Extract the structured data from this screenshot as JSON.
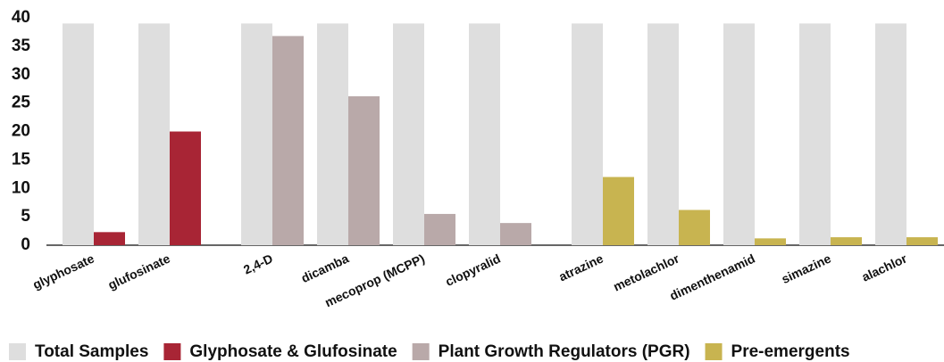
{
  "chart_data": {
    "type": "bar",
    "categories": [
      "glyphosate",
      "glufosinate",
      "2,4-D",
      "dicamba",
      "mecoprop (MCPP)",
      "clopyralid",
      "atrazine",
      "metolachlor",
      "dimenthenamid",
      "simazine",
      "alachlor"
    ],
    "series": [
      {
        "name": "Total Samples",
        "color": "#dedede",
        "values": [
          39,
          39,
          39,
          39,
          39,
          39,
          39,
          39,
          39,
          39,
          39
        ]
      },
      {
        "name": "Glyphosate & Glufosinate",
        "color": "#a82535",
        "values": [
          2.3,
          20,
          null,
          null,
          null,
          null,
          null,
          null,
          null,
          null,
          null
        ]
      },
      {
        "name": "Plant Growth Regulators (PGR)",
        "color": "#b9a9a9",
        "values": [
          null,
          null,
          36.8,
          26.2,
          5.5,
          3.9,
          null,
          null,
          null,
          null,
          null
        ]
      },
      {
        "name": "Pre-emergents",
        "color": "#c8b450",
        "values": [
          null,
          null,
          null,
          null,
          null,
          null,
          12,
          6.2,
          1.2,
          1.4,
          1.4
        ]
      }
    ],
    "ylim": [
      0,
      40
    ],
    "yticks": [
      0,
      5,
      10,
      15,
      20,
      25,
      30,
      35,
      40
    ]
  }
}
